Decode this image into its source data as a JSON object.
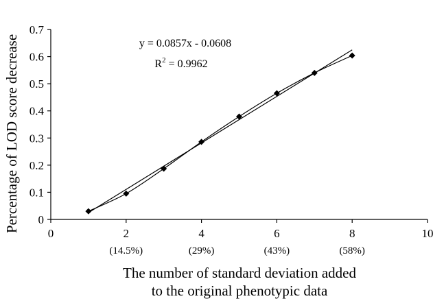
{
  "chart_data": {
    "type": "scatter",
    "xlabel_line1": "The number of standard deviation added",
    "xlabel_line2": "to the original phenotypic data",
    "ylabel": "Percentage of LOD score decrease",
    "xlim": [
      0,
      10
    ],
    "ylim": [
      0,
      0.7
    ],
    "x_ticks": [
      "0",
      "2",
      "4",
      "6",
      "8",
      "10"
    ],
    "y_ticks": [
      "0",
      "0.1",
      "0.2",
      "0.3",
      "0.4",
      "0.5",
      "0.6",
      "0.7"
    ],
    "x_sub_labels": [
      {
        "x": 2,
        "text": "(14.5%)"
      },
      {
        "x": 4,
        "text": "(29%)"
      },
      {
        "x": 6,
        "text": "(43%)"
      },
      {
        "x": 8,
        "text": "(58%)"
      }
    ],
    "series": [
      {
        "x": [
          1,
          2,
          3,
          4,
          5,
          6,
          7,
          8
        ],
        "values": [
          0.03,
          0.095,
          0.187,
          0.286,
          0.379,
          0.465,
          0.54,
          0.604
        ]
      }
    ],
    "trendline": {
      "type": "linear",
      "slope": 0.0857,
      "intercept": -0.0608,
      "x_range": [
        1,
        8
      ]
    },
    "equation_text": "y = 0.0857x - 0.0608",
    "r2_prefix": "R",
    "r2_sup": "2",
    "r2_value": " = 0.9962",
    "grid": false,
    "marker": "diamond",
    "colors": {
      "line": "#000000",
      "marker": "#000000"
    }
  }
}
